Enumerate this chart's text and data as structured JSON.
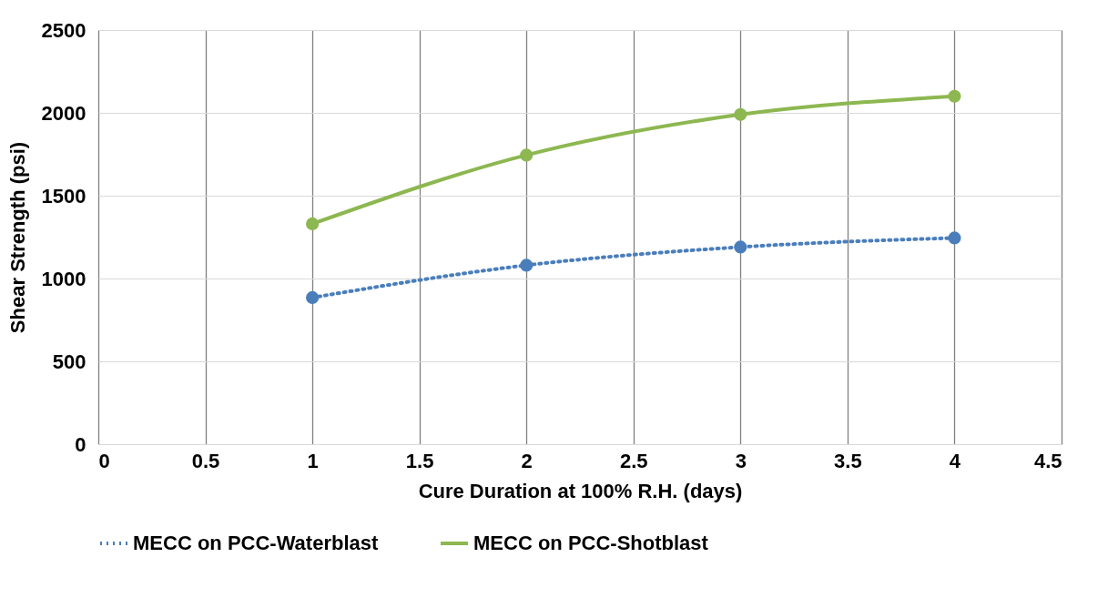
{
  "chart_data": {
    "type": "line",
    "xlabel": "Cure Duration at 100% R.H. (days)",
    "ylabel": "Shear Strength (psi)",
    "x": [
      1,
      2,
      3,
      4
    ],
    "series": [
      {
        "name": "MECC on PCC-Waterblast",
        "color": "#4a7ebb",
        "line_style": "dotted",
        "values": [
          885,
          1080,
          1190,
          1245
        ]
      },
      {
        "name": "MECC on PCC-Shotblast",
        "color": "#8db750",
        "line_style": "solid",
        "values": [
          1330,
          1745,
          1990,
          2100
        ]
      }
    ],
    "xlim": [
      0,
      4.5
    ],
    "xticks": [
      0,
      0.5,
      1,
      1.5,
      2,
      2.5,
      3,
      3.5,
      4,
      4.5
    ],
    "ylim": [
      0,
      2500
    ],
    "yticks": [
      0,
      500,
      1000,
      1500,
      2000,
      2500
    ],
    "grid": true,
    "legend": "bottom",
    "marker": "circle"
  }
}
